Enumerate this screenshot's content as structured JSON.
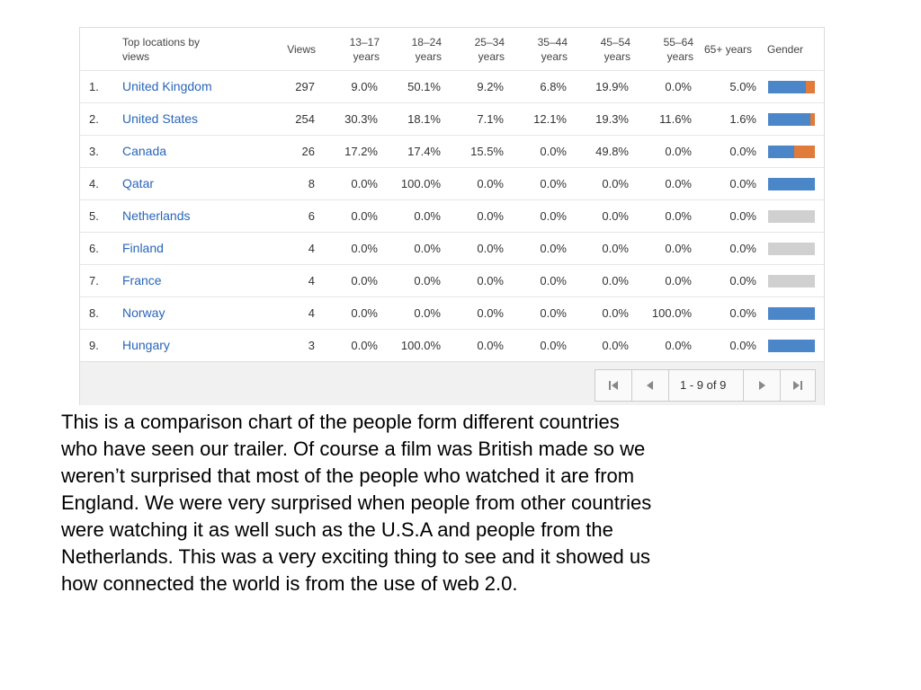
{
  "table": {
    "headers": [
      "Top locations by views",
      "Views",
      "13–17 years",
      "18–24 years",
      "25–34 years",
      "35–44 years",
      "45–54 years",
      "55–64 years",
      "65+ years",
      "Gender"
    ],
    "rows": [
      {
        "rank": "1.",
        "location": "United Kingdom",
        "views": 297,
        "ages": [
          "9.0%",
          "50.1%",
          "9.2%",
          "6.8%",
          "19.9%",
          "0.0%",
          "5.0%"
        ],
        "gender_male": 80
      },
      {
        "rank": "2.",
        "location": "United States",
        "views": 254,
        "ages": [
          "30.3%",
          "18.1%",
          "7.1%",
          "12.1%",
          "19.3%",
          "11.6%",
          "1.6%"
        ],
        "gender_male": 90
      },
      {
        "rank": "3.",
        "location": "Canada",
        "views": 26,
        "ages": [
          "17.2%",
          "17.4%",
          "15.5%",
          "0.0%",
          "49.8%",
          "0.0%",
          "0.0%"
        ],
        "gender_male": 55
      },
      {
        "rank": "4.",
        "location": "Qatar",
        "views": 8,
        "ages": [
          "0.0%",
          "100.0%",
          "0.0%",
          "0.0%",
          "0.0%",
          "0.0%",
          "0.0%"
        ],
        "gender_male": 100
      },
      {
        "rank": "5.",
        "location": "Netherlands",
        "views": 6,
        "ages": [
          "0.0%",
          "0.0%",
          "0.0%",
          "0.0%",
          "0.0%",
          "0.0%",
          "0.0%"
        ],
        "gender_male": null
      },
      {
        "rank": "6.",
        "location": "Finland",
        "views": 4,
        "ages": [
          "0.0%",
          "0.0%",
          "0.0%",
          "0.0%",
          "0.0%",
          "0.0%",
          "0.0%"
        ],
        "gender_male": null
      },
      {
        "rank": "7.",
        "location": "France",
        "views": 4,
        "ages": [
          "0.0%",
          "0.0%",
          "0.0%",
          "0.0%",
          "0.0%",
          "0.0%",
          "0.0%"
        ],
        "gender_male": null
      },
      {
        "rank": "8.",
        "location": "Norway",
        "views": 4,
        "ages": [
          "0.0%",
          "0.0%",
          "0.0%",
          "0.0%",
          "0.0%",
          "100.0%",
          "0.0%"
        ],
        "gender_male": 100
      },
      {
        "rank": "9.",
        "location": "Hungary",
        "views": 3,
        "ages": [
          "0.0%",
          "100.0%",
          "0.0%",
          "0.0%",
          "0.0%",
          "0.0%",
          "0.0%"
        ],
        "gender_male": 100
      }
    ]
  },
  "pagination": "1 - 9 of 9",
  "paragraph": [
    "This is a comparison chart of the people form different countries",
    "who have seen our trailer. Of course a film was British made so we",
    "weren’t surprised that most of the people who watched it are from",
    "England. We were very surprised when people from other countries",
    "were watching it as well such as the U.S.A and people from the",
    "Netherlands. This was a very exciting thing to see and it showed us",
    "how connected the world is from the use of web 2.0."
  ]
}
